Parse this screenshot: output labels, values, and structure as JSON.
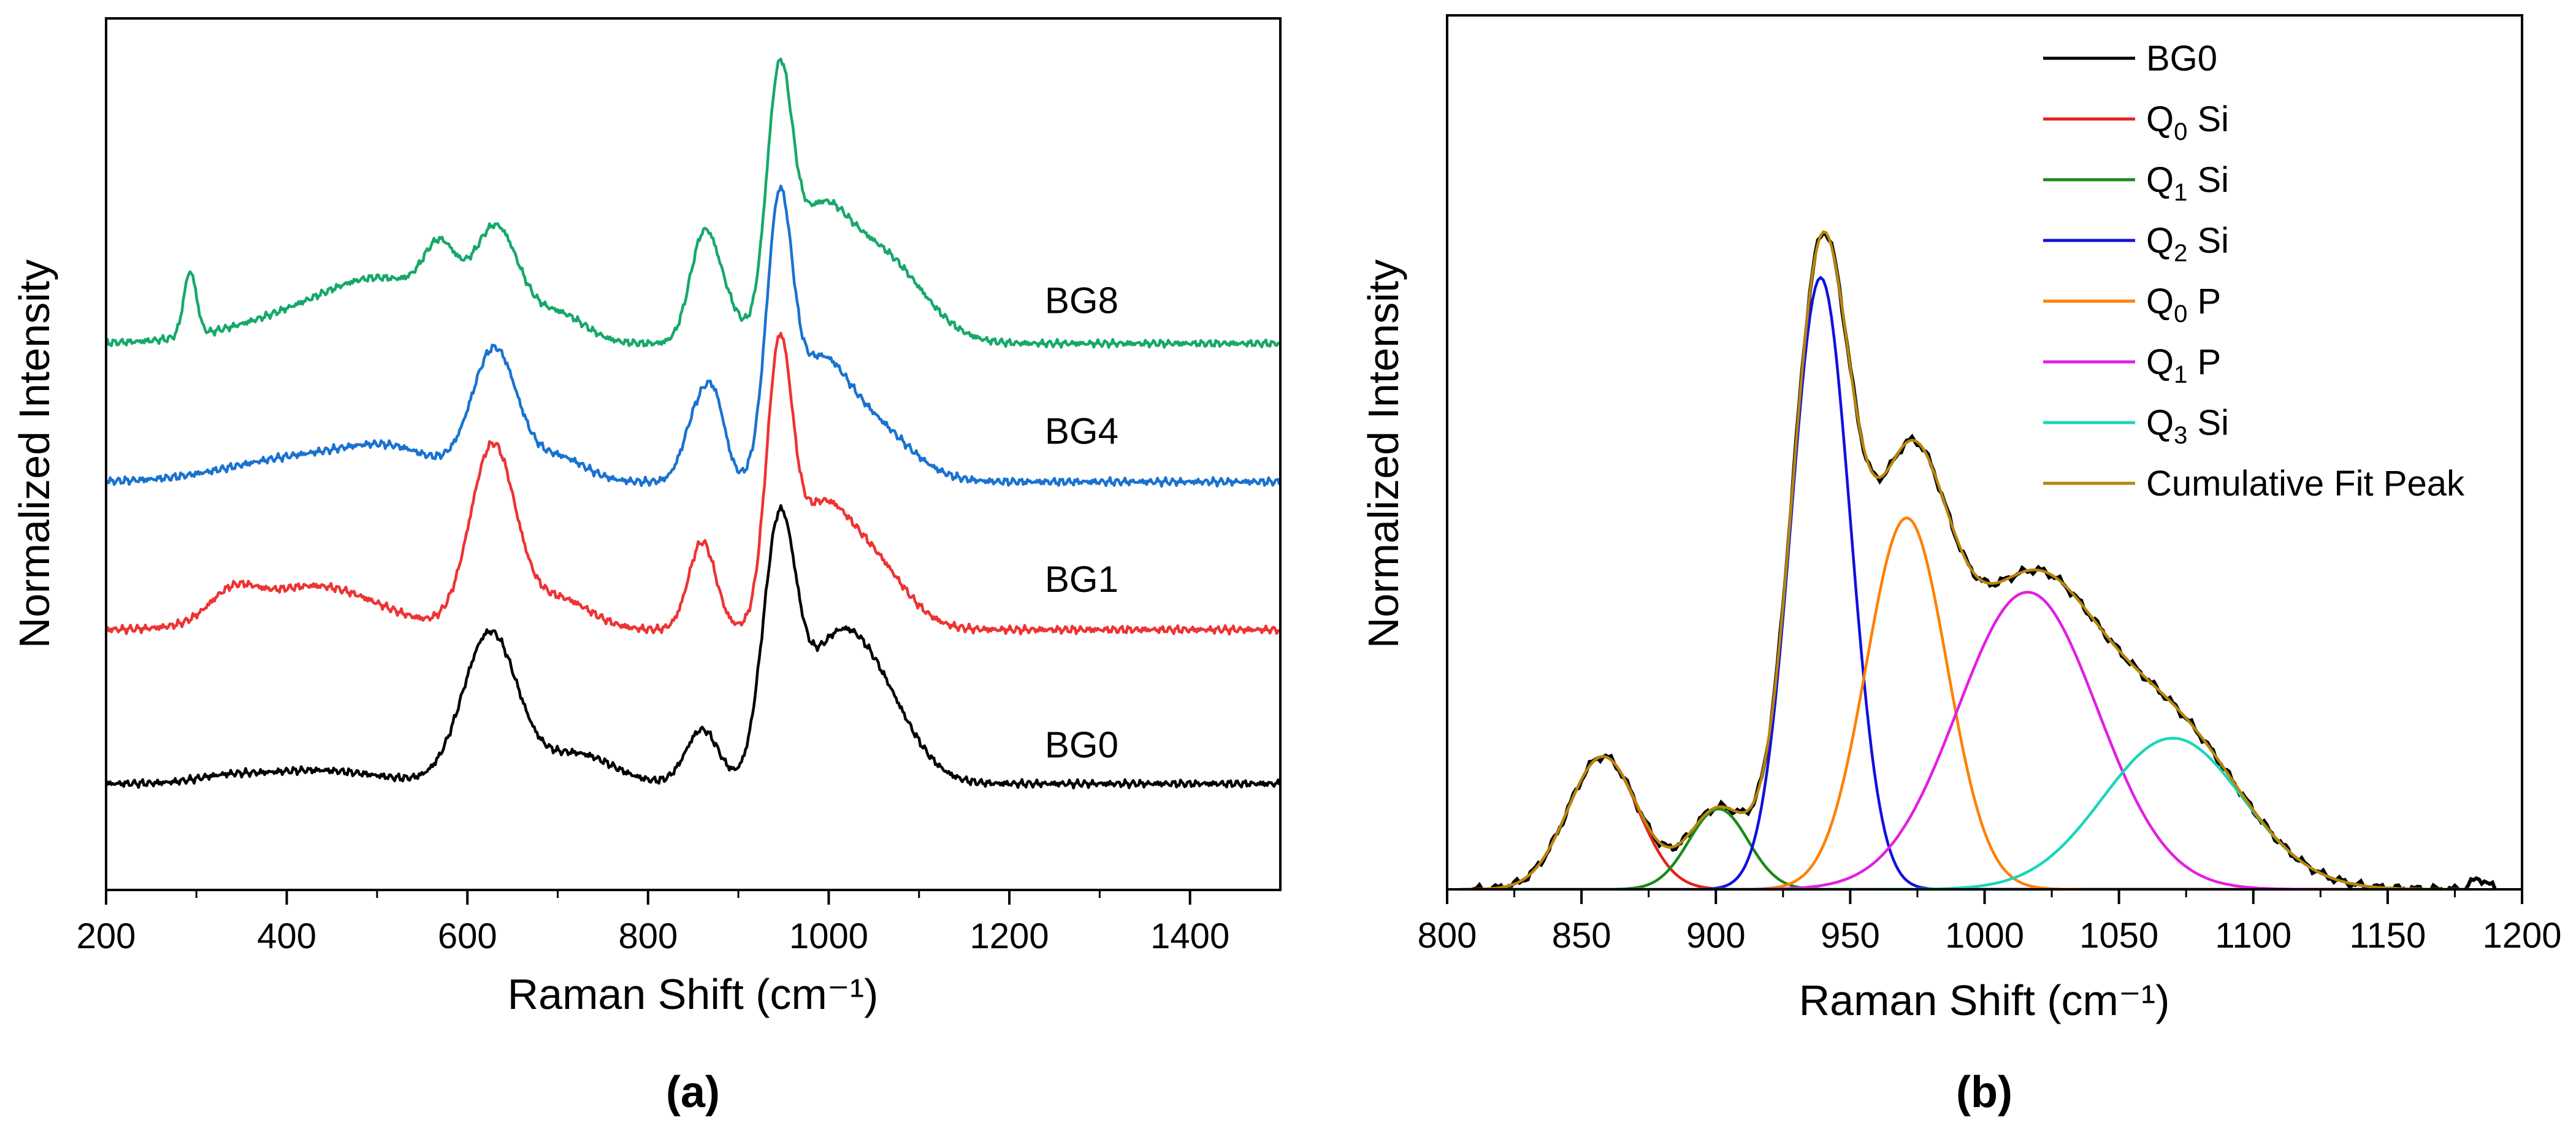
{
  "chart_data": [
    {
      "type": "line",
      "panel_label": "(a)",
      "xlabel": "Raman Shift (cm⁻¹)",
      "ylabel": "Normalized Intensity",
      "xlim": [
        200,
        1500
      ],
      "ylim": [
        0,
        1
      ],
      "xticks": [
        200,
        400,
        600,
        800,
        1000,
        1200,
        1400
      ],
      "xtick_labels": [
        "200",
        "400",
        "600",
        "800",
        "1000",
        "1200",
        "1400"
      ],
      "yticks_shown": false,
      "legend": "none",
      "series": [
        {
          "name": "BG0",
          "label": "BG0",
          "label_at": [
            1280,
            0.152
          ],
          "color": "#000000",
          "offset": 0.115,
          "scale": 0.345,
          "baseline": 0.02,
          "peaks": [
            [
              330,
              30,
              0.015
            ],
            [
              430,
              70,
              0.045
            ],
            [
              625,
              30,
              0.5
            ],
            [
              720,
              40,
              0.1
            ],
            [
              860,
              18,
              0.18
            ],
            [
              945,
              18,
              0.8
            ],
            [
              1000,
              35,
              0.34
            ],
            [
              1050,
              40,
              0.3
            ]
          ]
        },
        {
          "name": "BG1",
          "label": "BG1",
          "label_at": [
            1280,
            0.342
          ],
          "color": "#ee3333",
          "offset": 0.295,
          "scale": 0.36,
          "baseline": 0.01,
          "peaks": [
            [
              340,
              25,
              0.08
            ],
            [
              430,
              70,
              0.14
            ],
            [
              628,
              25,
              0.58
            ],
            [
              700,
              35,
              0.1
            ],
            [
              860,
              15,
              0.28
            ],
            [
              945,
              14,
              0.8
            ],
            [
              985,
              30,
              0.3
            ],
            [
              1040,
              40,
              0.24
            ]
          ]
        },
        {
          "name": "BG4",
          "label": "BG4",
          "label_at": [
            1280,
            0.512
          ],
          "color": "#1a72d0",
          "offset": 0.463,
          "scale": 0.355,
          "baseline": 0.015,
          "peaks": [
            [
              420,
              80,
              0.08
            ],
            [
              520,
              50,
              0.08
            ],
            [
              630,
              25,
              0.42
            ],
            [
              700,
              30,
              0.08
            ],
            [
              855,
              15,
              0.22
            ],
            [
              875,
              12,
              0.2
            ],
            [
              945,
              14,
              0.8
            ],
            [
              985,
              30,
              0.3
            ],
            [
              1040,
              45,
              0.2
            ]
          ]
        },
        {
          "name": "BG8",
          "label": "BG8",
          "label_at": [
            1280,
            0.662
          ],
          "color": "#17a86a",
          "offset": 0.627,
          "scale": 0.335,
          "baseline": 0.0,
          "peaks": [
            [
              293,
              7,
              0.22
            ],
            [
              450,
              90,
              0.12
            ],
            [
              570,
              18,
              0.2
            ],
            [
              520,
              60,
              0.13
            ],
            [
              632,
              25,
              0.36
            ],
            [
              700,
              30,
              0.1
            ],
            [
              860,
              15,
              0.3
            ],
            [
              880,
              18,
              0.15
            ],
            [
              945,
              14,
              0.8
            ],
            [
              985,
              30,
              0.33
            ],
            [
              1040,
              45,
              0.28
            ],
            [
              1090,
              40,
              0.08
            ]
          ]
        }
      ]
    },
    {
      "type": "line",
      "panel_label": "(b)",
      "xlabel": "Raman Shift (cm⁻¹)",
      "ylabel": "Normalized Intensity",
      "xlim": [
        800,
        1200
      ],
      "ylim": [
        0,
        1
      ],
      "xticks": [
        800,
        850,
        900,
        950,
        1000,
        1050,
        1100,
        1150,
        1200
      ],
      "xtick_labels": [
        "800",
        "850",
        "900",
        "950",
        "1000",
        "1050",
        "1100",
        "1150",
        "1200"
      ],
      "yticks_shown": false,
      "legend": "top-right",
      "components": [
        {
          "name": "Q0 Si",
          "label_base": "Q",
          "label_sub": "0",
          "label_rest": " Si",
          "color": "#e8201c",
          "center": 858,
          "sigma": 13,
          "amp": 0.152
        },
        {
          "name": "Q1 Si",
          "label_base": "Q",
          "label_sub": "1",
          "label_rest": " Si",
          "color": "#1a8a1a",
          "center": 901,
          "sigma": 11,
          "amp": 0.092
        },
        {
          "name": "Q2 Si",
          "label_base": "Q",
          "label_sub": "2",
          "label_rest": " Si",
          "color": "#1010e0",
          "center": 939,
          "sigma": 11,
          "amp": 0.7
        },
        {
          "name": "Q0 P",
          "label_base": "Q",
          "label_sub": "0",
          "label_rest": " P",
          "color": "#ff8000",
          "center": 971,
          "sigma": 15,
          "amp": 0.425
        },
        {
          "name": "Q1 P",
          "label_base": "Q",
          "label_sub": "1",
          "label_rest": " P",
          "color": "#e020e0",
          "center": 1016,
          "sigma": 26,
          "amp": 0.34
        },
        {
          "name": "Q3 Si",
          "label_base": "Q",
          "label_sub": "3",
          "label_rest": " Si",
          "color": "#1ad6b8",
          "center": 1070,
          "sigma": 26,
          "amp": 0.173
        }
      ],
      "measured": {
        "name": "BG0",
        "label": "BG0",
        "color": "#000000"
      },
      "cumulative": {
        "name": "Cumulative Fit Peak",
        "label": "Cumulative Fit Peak",
        "color": "#b8860b"
      }
    }
  ]
}
